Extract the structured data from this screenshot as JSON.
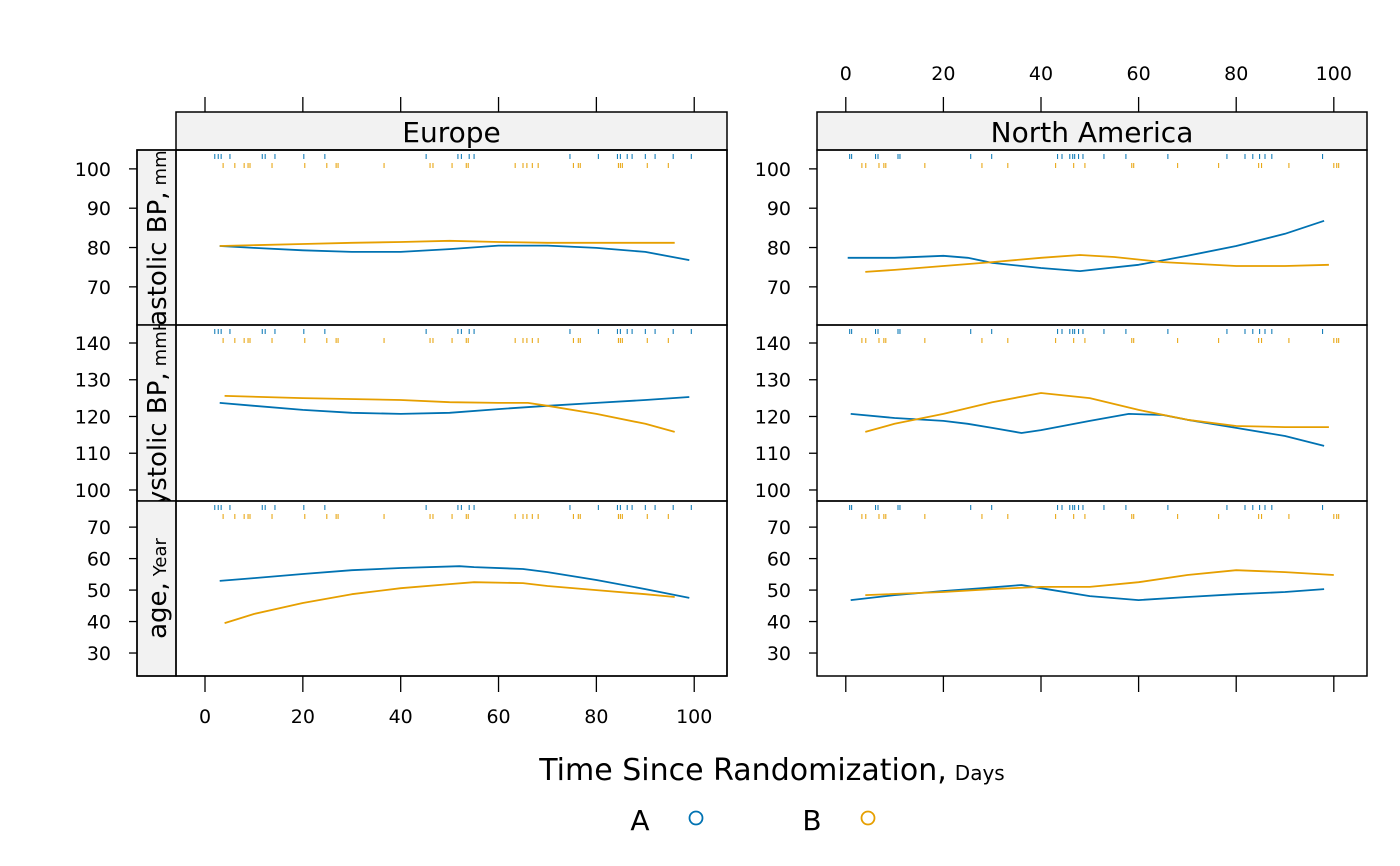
{
  "x_label": "Time Since Randomization,",
  "x_unit": "Days",
  "xticks": [
    0,
    20,
    40,
    60,
    80,
    100
  ],
  "legend": [
    {
      "name": "A",
      "color": "#0072B2"
    },
    {
      "name": "B",
      "color": "#E69F00"
    }
  ],
  "columns": [
    {
      "name": "Europe",
      "xlim": [
        -13.9,
        106.7
      ],
      "rug": [
        [
          2.0,
          2.7,
          3.3,
          5.1,
          11.7,
          12.3,
          14.3,
          20.2,
          24.5,
          45.2,
          51.7,
          52.4,
          54.0,
          55.0,
          74.6,
          80.4,
          84.3,
          84.9,
          86.3,
          87.3,
          90.0,
          92.0,
          95.7,
          99.4
        ],
        [
          3.7,
          6.1,
          8.0,
          8.8,
          9.2,
          13.7,
          20.4,
          24.9,
          26.8,
          27.2,
          36.6,
          46.0,
          46.6,
          50.5,
          53.4,
          53.8,
          63.4,
          65.0,
          65.8,
          66.9,
          68.1,
          75.3,
          76.3,
          76.7,
          84.5,
          84.9,
          85.3,
          90.4,
          94.7
        ]
      ]
    },
    {
      "name": "North America",
      "xlim": [
        -5.9,
        106.8
      ],
      "rug": [
        [
          0.8,
          1.2,
          6.1,
          6.6,
          10.7,
          11.1,
          25.6,
          29.9,
          43.4,
          44.3,
          45.9,
          46.5,
          46.9,
          47.7,
          48.6,
          52.9,
          57.4,
          66.0,
          78.1,
          81.8,
          83.4,
          84.8,
          85.9,
          87.3,
          97.7
        ],
        [
          3.3,
          4.1,
          6.8,
          7.8,
          8.2,
          16.2,
          27.9,
          33.2,
          43.0,
          46.7,
          49.0,
          58.6,
          59.0,
          68.0,
          76.4,
          84.6,
          85.2,
          90.8,
          100.0,
          100.6,
          101.0
        ]
      ]
    }
  ],
  "rows": [
    {
      "label": "diastolic BP,",
      "unit": "mmHg",
      "ylim": [
        60.3,
        104.8
      ],
      "yticks": [
        70,
        80,
        90,
        100
      ]
    },
    {
      "label": "systolic BP,",
      "unit": "mmHg",
      "ylim": [
        97.0,
        144.9
      ],
      "yticks": [
        100,
        110,
        120,
        130,
        140
      ]
    },
    {
      "label": "age,",
      "unit": "Year",
      "ylim": [
        22.7,
        78.3
      ],
      "yticks": [
        30,
        40,
        50,
        60,
        70
      ]
    }
  ],
  "chart_data": [
    {
      "type": "line",
      "series": [
        {
          "x": [
            3,
            10,
            20,
            30,
            40,
            50,
            60,
            70,
            80,
            90,
            99
          ],
          "values": [
            80.4,
            79.9,
            79.3,
            78.9,
            78.9,
            79.6,
            80.5,
            80.5,
            79.9,
            78.9,
            76.8
          ]
        },
        {
          "x": [
            3,
            20,
            30,
            40,
            50,
            60,
            70,
            80,
            90,
            96
          ],
          "values": [
            80.4,
            80.9,
            81.2,
            81.4,
            81.7,
            81.4,
            81.2,
            81.2,
            81.2,
            81.2
          ]
        }
      ]
    },
    {
      "type": "line",
      "series": [
        {
          "x": [
            0.4,
            10,
            20,
            25,
            30,
            40,
            48,
            60,
            70,
            80,
            90,
            98
          ],
          "values": [
            77.4,
            77.4,
            77.9,
            77.4,
            76.1,
            74.8,
            74.0,
            75.6,
            77.9,
            80.4,
            83.5,
            86.8
          ]
        },
        {
          "x": [
            4,
            10,
            20,
            30,
            40,
            48,
            55,
            65,
            80,
            90,
            99
          ],
          "values": [
            73.8,
            74.3,
            75.3,
            76.3,
            77.4,
            78.1,
            77.6,
            76.3,
            75.3,
            75.3,
            75.6
          ]
        }
      ]
    },
    {
      "type": "line",
      "series": [
        {
          "x": [
            3,
            10,
            20,
            30,
            40,
            50,
            60,
            70,
            80,
            90,
            99
          ],
          "values": [
            123.7,
            122.9,
            121.8,
            121.0,
            120.7,
            121.0,
            122.0,
            122.9,
            123.7,
            124.5,
            125.3
          ]
        },
        {
          "x": [
            4,
            20,
            40,
            50,
            60,
            66,
            70,
            80,
            90,
            96
          ],
          "values": [
            125.6,
            125.0,
            124.5,
            123.9,
            123.7,
            123.7,
            122.9,
            120.7,
            118.0,
            115.8
          ]
        }
      ]
    },
    {
      "type": "line",
      "series": [
        {
          "x": [
            1,
            10,
            20,
            25,
            30,
            36,
            40,
            50,
            58,
            65,
            70,
            80,
            90,
            98
          ],
          "values": [
            120.7,
            119.6,
            118.8,
            118.0,
            116.9,
            115.5,
            116.3,
            118.8,
            120.7,
            120.4,
            119.1,
            116.9,
            114.7,
            112.0
          ]
        },
        {
          "x": [
            4,
            10,
            20,
            30,
            40,
            50,
            60,
            70,
            80,
            90,
            99
          ],
          "values": [
            115.8,
            118.0,
            120.7,
            123.9,
            126.4,
            125.0,
            121.8,
            119.1,
            117.4,
            117.1,
            117.1
          ]
        }
      ]
    },
    {
      "type": "line",
      "series": [
        {
          "x": [
            3,
            10,
            20,
            30,
            40,
            52,
            55,
            65,
            70,
            80,
            90,
            99
          ],
          "values": [
            52.9,
            53.8,
            55.1,
            56.3,
            57.0,
            57.6,
            57.3,
            56.7,
            55.7,
            53.2,
            50.3,
            47.5
          ]
        },
        {
          "x": [
            4,
            10,
            20,
            30,
            40,
            50,
            55,
            65,
            70,
            80,
            90,
            96
          ],
          "values": [
            39.5,
            42.4,
            45.9,
            48.7,
            50.6,
            51.9,
            52.5,
            52.2,
            51.3,
            50.0,
            48.7,
            47.8
          ]
        }
      ]
    },
    {
      "type": "line",
      "series": [
        {
          "x": [
            1,
            10,
            20,
            28,
            36,
            40,
            50,
            60,
            70,
            80,
            90,
            98
          ],
          "values": [
            46.8,
            48.4,
            49.7,
            50.6,
            51.6,
            50.6,
            48.1,
            46.8,
            47.8,
            48.7,
            49.4,
            50.3
          ]
        },
        {
          "x": [
            4,
            20,
            30,
            40,
            50,
            60,
            70,
            80,
            90,
            100
          ],
          "values": [
            48.4,
            49.4,
            50.3,
            51.0,
            51.0,
            52.5,
            54.8,
            56.3,
            55.7,
            54.8
          ]
        }
      ]
    }
  ]
}
